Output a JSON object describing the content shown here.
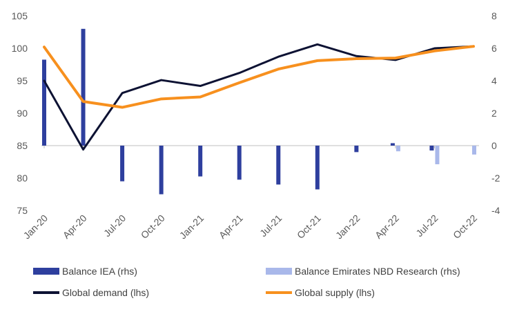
{
  "chart_data": {
    "type": "bar+line",
    "categories": [
      "Jan-20",
      "Apr-20",
      "Jul-20",
      "Oct-20",
      "Jan-21",
      "Apr-21",
      "Jul-21",
      "Oct-21",
      "Jan-22",
      "Apr-22",
      "Jul-22",
      "Oct-22"
    ],
    "left_axis": {
      "ylim": [
        75,
        105
      ],
      "ticks": [
        75,
        80,
        85,
        90,
        95,
        100,
        105
      ]
    },
    "right_axis": {
      "ylim": [
        -4,
        8
      ],
      "ticks": [
        -4,
        -2,
        0,
        2,
        4,
        6,
        8
      ]
    },
    "grid": false,
    "legend_placement": "bottom",
    "series": [
      {
        "name": "Balance IEA (rhs)",
        "type": "bar",
        "axis": "right",
        "color": "#2E3F9E",
        "values": [
          5.3,
          7.2,
          -2.2,
          -3.0,
          -1.9,
          -2.1,
          -2.4,
          -2.7,
          -0.4,
          0.15,
          -0.3,
          null
        ]
      },
      {
        "name": "Balance Emirates NBD Research (rhs)",
        "type": "bar",
        "axis": "right",
        "color": "#A9B8EA",
        "values": [
          null,
          null,
          null,
          null,
          null,
          null,
          null,
          null,
          null,
          -0.35,
          -1.15,
          -0.55
        ]
      },
      {
        "name": "Global demand (lhs)",
        "type": "line",
        "axis": "left",
        "color": "#0D1233",
        "values": [
          95.0,
          84.4,
          93.1,
          95.1,
          94.2,
          96.2,
          98.7,
          100.6,
          98.8,
          98.2,
          100.0,
          100.3
        ]
      },
      {
        "name": "Global supply (lhs)",
        "type": "line",
        "axis": "left",
        "color": "#F7901E",
        "values": [
          100.2,
          91.8,
          90.9,
          92.2,
          92.5,
          94.7,
          96.8,
          98.1,
          98.4,
          98.5,
          99.6,
          100.3
        ]
      }
    ]
  }
}
